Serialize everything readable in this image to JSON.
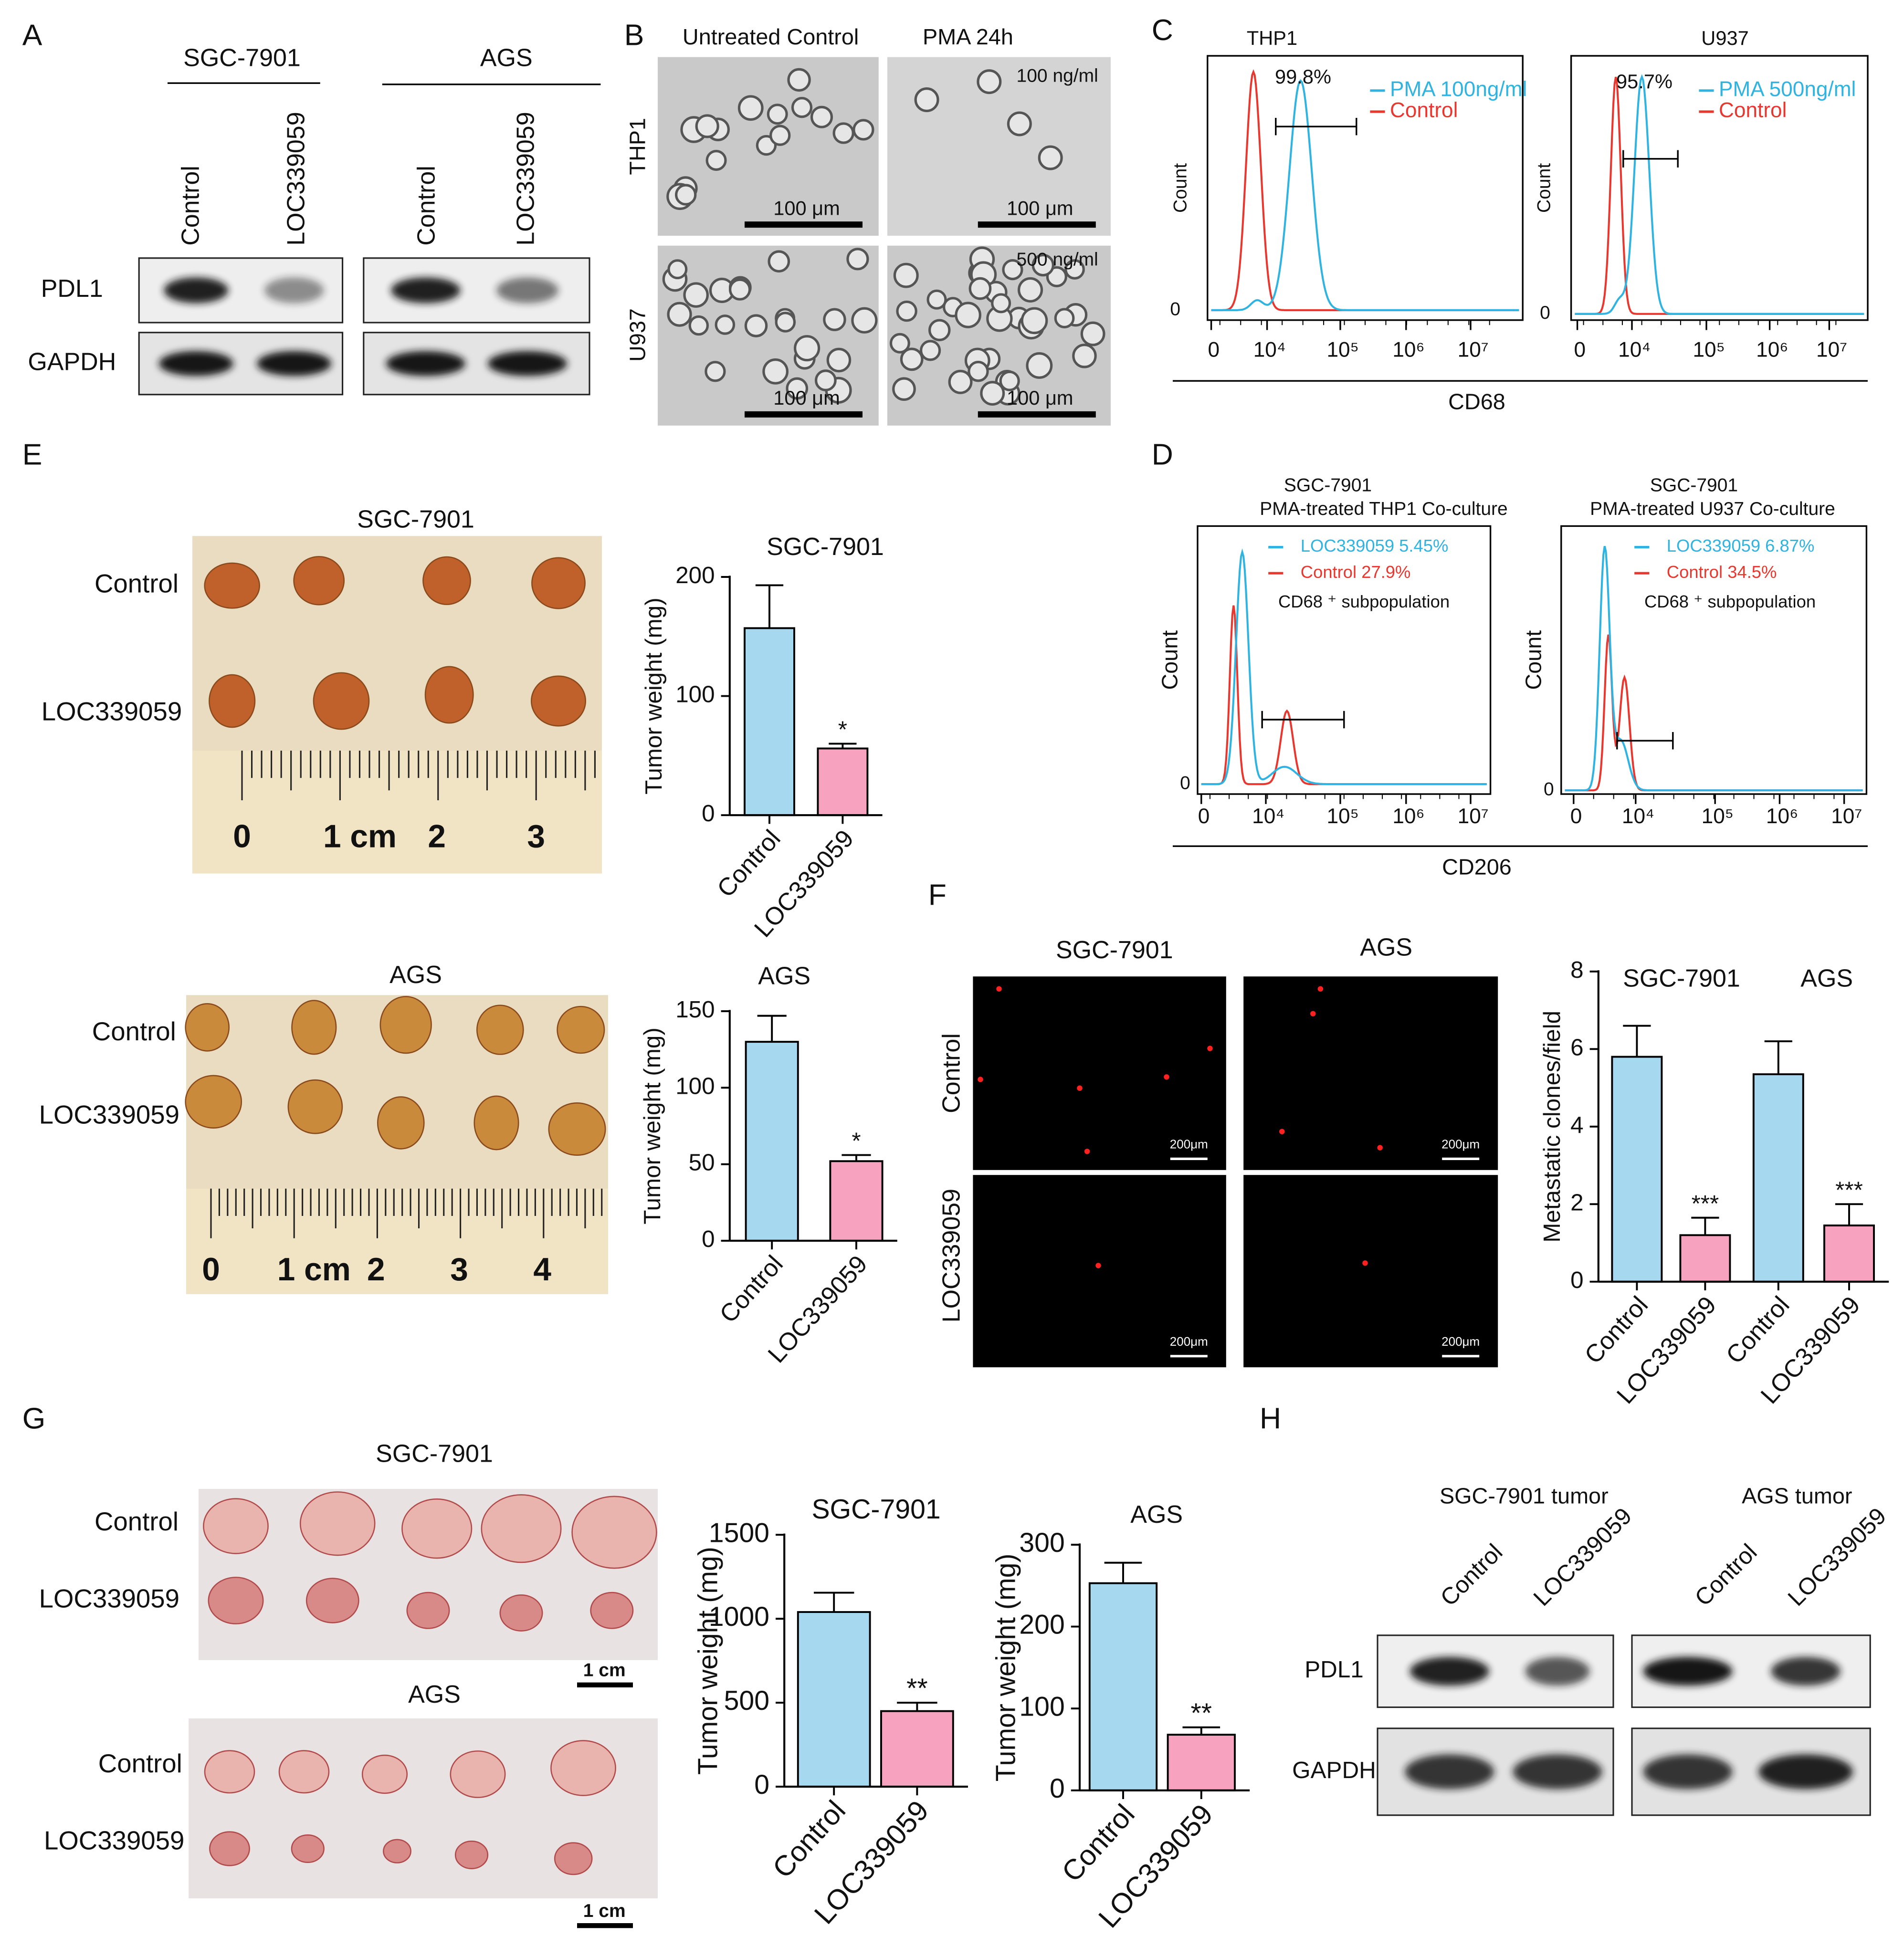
{
  "panels": [
    {
      "label": "A",
      "groups": [
        "SGC-7901",
        "AGS"
      ],
      "lanes": [
        "Control",
        "LOC339059"
      ],
      "rows": [
        "PDL1",
        "GAPDH"
      ]
    },
    {
      "label": "B",
      "columns": [
        "Untreated Control",
        "PMA 24h"
      ],
      "rows": [
        "THP1",
        "U937"
      ],
      "doses": [
        "100 ng/ml",
        "500 ng/ml"
      ],
      "scale_bar": "100 μm"
    },
    {
      "label": "C",
      "plots": [
        {
          "title": "THP1",
          "gate": "99.8%",
          "legend": [
            "PMA 100ng/ml",
            "Control"
          ]
        },
        {
          "title": "U937",
          "gate": "95.7%",
          "legend": [
            "PMA 500ng/ml",
            "Control"
          ]
        }
      ],
      "y_label": "Count",
      "y_tick": "0",
      "x_ticks": [
        "0",
        "10⁴",
        "10⁵",
        "10⁶",
        "10⁷"
      ],
      "x_label": "CD68"
    },
    {
      "label": "D",
      "plots": [
        {
          "title": "SGC-7901",
          "subtitle": "PMA-treated THP1 Co-culture",
          "legend": [
            "LOC339059 5.45%",
            "Control 27.9%",
            "CD68 ⁺ subpopulation"
          ]
        },
        {
          "title": "SGC-7901",
          "subtitle": "PMA-treated U937 Co-culture",
          "legend": [
            "LOC339059 6.87%",
            "Control 34.5%",
            "CD68 ⁺ subpopulation"
          ]
        }
      ],
      "y_label": "Count",
      "y_tick": "0",
      "x_ticks": [
        "0",
        "10⁴",
        "10⁵",
        "10⁶",
        "10⁷"
      ],
      "x_label": "CD206"
    },
    {
      "label": "E",
      "photos": [
        {
          "title": "SGC-7901",
          "rows": [
            "Control",
            "LOC339059"
          ],
          "ruler": [
            "0",
            "1 cm",
            "2",
            "3"
          ]
        },
        {
          "title": "AGS",
          "rows": [
            "Control",
            "LOC339059"
          ],
          "ruler": [
            "0",
            "1 cm",
            "2",
            "3",
            "4"
          ]
        }
      ]
    },
    {
      "label": "F",
      "columns": [
        "SGC-7901",
        "AGS"
      ],
      "rows": [
        "Control",
        "LOC339059"
      ],
      "scale_bar": "200μm"
    },
    {
      "label": "G",
      "photos": [
        {
          "title": "SGC-7901",
          "rows": [
            "Control",
            "LOC339059"
          ],
          "scale_bar": "1 cm"
        },
        {
          "title": "AGS",
          "rows": [
            "Control",
            "LOC339059"
          ],
          "scale_bar": "1 cm"
        }
      ]
    },
    {
      "label": "H",
      "groups": [
        "SGC-7901 tumor",
        "AGS tumor"
      ],
      "lanes": [
        "Control",
        "LOC339059"
      ],
      "rows": [
        "PDL1",
        "GAPDH"
      ]
    }
  ],
  "chart_data": [
    {
      "type": "bar",
      "title": "SGC-7901",
      "y_label": "Tumor weight (mg)",
      "categories": [
        "Control",
        "LOC339059"
      ],
      "values": [
        157,
        56
      ],
      "errors": [
        36,
        4
      ],
      "annotations": [
        null,
        "*"
      ],
      "colors": [
        "#a6d8ef",
        "#f7a3bf"
      ],
      "ylim": [
        0,
        200
      ],
      "yticks": [
        0,
        100,
        200
      ]
    },
    {
      "type": "bar",
      "title": "AGS",
      "y_label": "Tumor weight (mg)",
      "categories": [
        "Control",
        "LOC339059"
      ],
      "values": [
        130,
        52
      ],
      "errors": [
        17,
        4
      ],
      "annotations": [
        null,
        "*"
      ],
      "colors": [
        "#a6d8ef",
        "#f7a3bf"
      ],
      "ylim": [
        0,
        150
      ],
      "yticks": [
        0,
        50,
        100,
        150
      ]
    },
    {
      "type": "bar",
      "groups": [
        "SGC-7901",
        "AGS"
      ],
      "y_label": "Metastatic clones/field",
      "categories": [
        "Control",
        "LOC339059",
        "Control",
        "LOC339059"
      ],
      "values": [
        5.8,
        1.2,
        5.35,
        1.45
      ],
      "errors": [
        0.8,
        0.45,
        0.85,
        0.55
      ],
      "annotations": [
        null,
        "***",
        null,
        "***"
      ],
      "colors": [
        "#a6d8ef",
        "#f7a3bf",
        "#a6d8ef",
        "#f7a3bf"
      ],
      "ylim": [
        0,
        8
      ],
      "yticks": [
        0,
        2,
        4,
        6,
        8
      ]
    },
    {
      "type": "bar",
      "title": "SGC-7901",
      "y_label": "Tumor weight (mg)",
      "categories": [
        "Control",
        "LOC339059"
      ],
      "values": [
        1040,
        450
      ],
      "errors": [
        115,
        50
      ],
      "annotations": [
        null,
        "**"
      ],
      "colors": [
        "#a6d8ef",
        "#f7a3bf"
      ],
      "ylim": [
        0,
        1500
      ],
      "yticks": [
        0,
        500,
        1000,
        1500
      ]
    },
    {
      "type": "bar",
      "title": "AGS",
      "y_label": "Tumor weight (mg)",
      "categories": [
        "Control",
        "LOC339059"
      ],
      "values": [
        253,
        68
      ],
      "errors": [
        25,
        9
      ],
      "annotations": [
        null,
        "**"
      ],
      "colors": [
        "#a6d8ef",
        "#f7a3bf"
      ],
      "ylim": [
        0,
        300
      ],
      "yticks": [
        0,
        100,
        200,
        300
      ]
    }
  ]
}
